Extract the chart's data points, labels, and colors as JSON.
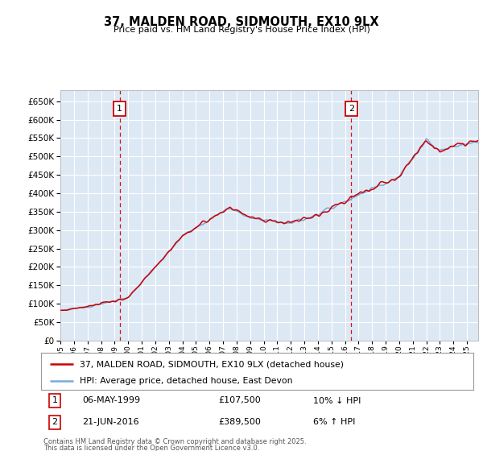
{
  "title": "37, MALDEN ROAD, SIDMOUTH, EX10 9LX",
  "subtitle": "Price paid vs. HM Land Registry's House Price Index (HPI)",
  "ylim": [
    0,
    680000
  ],
  "yticks": [
    0,
    50000,
    100000,
    150000,
    200000,
    250000,
    300000,
    350000,
    400000,
    450000,
    500000,
    550000,
    600000,
    650000
  ],
  "background_color": "#ffffff",
  "plot_bg_color": "#dde8f5",
  "grid_color": "#ffffff",
  "hpi_color": "#7aaadd",
  "price_color": "#cc0000",
  "t1_x_year": 1999.37,
  "t2_x_year": 2016.46,
  "legend_line1": "37, MALDEN ROAD, SIDMOUTH, EX10 9LX (detached house)",
  "legend_line2": "HPI: Average price, detached house, East Devon",
  "t1_date": "06-MAY-1999",
  "t1_price": "£107,500",
  "t1_hpi": "10% ↓ HPI",
  "t2_date": "21-JUN-2016",
  "t2_price": "£389,500",
  "t2_hpi": "6% ↑ HPI",
  "footnote1": "Contains HM Land Registry data © Crown copyright and database right 2025.",
  "footnote2": "This data is licensed under the Open Government Licence v3.0.",
  "dashed_line_color": "#cc0000",
  "marker_box_color": "#cc0000",
  "xlim_start": 1995,
  "xlim_end": 2025.83
}
